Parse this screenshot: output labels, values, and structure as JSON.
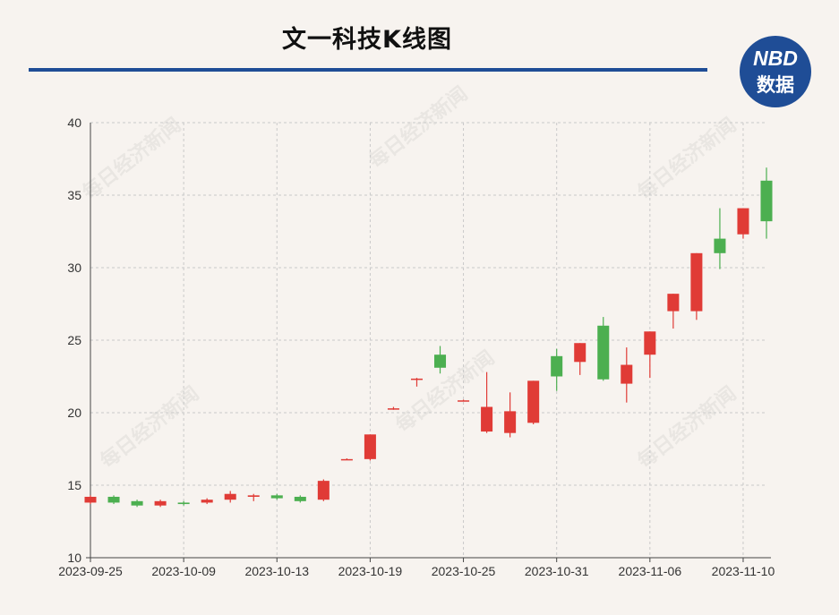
{
  "header": {
    "title": "文一科技K线图",
    "logo_line1": "NBD",
    "logo_line2": "数据",
    "watermark": "每日经济新闻"
  },
  "colors": {
    "up": "#e03b36",
    "down": "#4caf50",
    "brand": "#1f4d96",
    "grid": "#c9c9c9",
    "axis": "#444444"
  },
  "chart_data": {
    "type": "candlestick",
    "title": "文一科技K线图",
    "ylim": [
      10,
      40
    ],
    "yticks": [
      10,
      15,
      20,
      25,
      30,
      35,
      40
    ],
    "xtick_labels": [
      "2023-09-25",
      "2023-10-09",
      "2023-10-13",
      "2023-10-19",
      "2023-10-25",
      "2023-10-31",
      "2023-11-06",
      "2023-11-10"
    ],
    "grid": true,
    "up_color_meaning": "close >= open (red)",
    "candles": [
      {
        "date": "2023-09-25",
        "open": 13.8,
        "close": 14.2,
        "high": 14.3,
        "low": 13.7
      },
      {
        "date": "2023-09-26",
        "open": 14.2,
        "close": 13.8,
        "high": 14.3,
        "low": 13.7
      },
      {
        "date": "2023-09-27",
        "open": 13.9,
        "close": 13.6,
        "high": 14.0,
        "low": 13.5
      },
      {
        "date": "2023-09-28",
        "open": 13.6,
        "close": 13.9,
        "high": 14.0,
        "low": 13.5
      },
      {
        "date": "2023-10-09",
        "open": 13.8,
        "close": 13.7,
        "high": 13.9,
        "low": 13.6
      },
      {
        "date": "2023-10-10",
        "open": 13.8,
        "close": 14.0,
        "high": 14.1,
        "low": 13.7
      },
      {
        "date": "2023-10-11",
        "open": 14.0,
        "close": 14.4,
        "high": 14.6,
        "low": 13.8
      },
      {
        "date": "2023-10-12",
        "open": 14.2,
        "close": 14.3,
        "high": 14.4,
        "low": 13.9
      },
      {
        "date": "2023-10-13",
        "open": 14.3,
        "close": 14.1,
        "high": 14.4,
        "low": 14.0
      },
      {
        "date": "2023-10-16",
        "open": 14.2,
        "close": 13.9,
        "high": 14.3,
        "low": 13.8
      },
      {
        "date": "2023-10-17",
        "open": 14.0,
        "close": 15.3,
        "high": 15.4,
        "low": 13.9
      },
      {
        "date": "2023-10-18",
        "open": 16.8,
        "close": 16.8,
        "high": 16.85,
        "low": 16.75
      },
      {
        "date": "2023-10-19",
        "open": 16.8,
        "close": 18.5,
        "high": 18.5,
        "low": 16.7
      },
      {
        "date": "2023-10-20",
        "open": 20.3,
        "close": 20.3,
        "high": 20.4,
        "low": 20.2
      },
      {
        "date": "2023-10-23",
        "open": 22.35,
        "close": 22.35,
        "high": 22.4,
        "low": 21.8
      },
      {
        "date": "2023-10-24",
        "open": 24.0,
        "close": 23.1,
        "high": 24.6,
        "low": 22.7
      },
      {
        "date": "2023-10-25",
        "open": 20.85,
        "close": 20.85,
        "high": 20.9,
        "low": 20.8
      },
      {
        "date": "2023-10-26",
        "open": 18.7,
        "close": 20.4,
        "high": 22.8,
        "low": 18.6
      },
      {
        "date": "2023-10-27",
        "open": 18.6,
        "close": 20.1,
        "high": 21.4,
        "low": 18.3
      },
      {
        "date": "2023-10-30",
        "open": 19.3,
        "close": 22.2,
        "high": 22.2,
        "low": 19.2
      },
      {
        "date": "2023-10-31",
        "open": 23.9,
        "close": 22.5,
        "high": 24.4,
        "low": 21.5
      },
      {
        "date": "2023-11-01",
        "open": 23.5,
        "close": 24.8,
        "high": 24.8,
        "low": 22.6
      },
      {
        "date": "2023-11-02",
        "open": 26.0,
        "close": 22.3,
        "high": 26.6,
        "low": 22.2
      },
      {
        "date": "2023-11-03",
        "open": 22.0,
        "close": 23.3,
        "high": 24.5,
        "low": 20.7
      },
      {
        "date": "2023-11-06",
        "open": 24.0,
        "close": 25.6,
        "high": 25.6,
        "low": 22.4
      },
      {
        "date": "2023-11-07",
        "open": 27.0,
        "close": 28.2,
        "high": 28.2,
        "low": 25.8
      },
      {
        "date": "2023-11-08",
        "open": 27.0,
        "close": 31.0,
        "high": 31.0,
        "low": 26.4
      },
      {
        "date": "2023-11-09",
        "open": 32.0,
        "close": 31.0,
        "high": 34.1,
        "low": 29.9
      },
      {
        "date": "2023-11-10",
        "open": 32.3,
        "close": 34.1,
        "high": 34.1,
        "low": 32.0
      },
      {
        "date": "2023-11-13",
        "open": 36.0,
        "close": 33.2,
        "high": 36.9,
        "low": 32.0
      }
    ]
  }
}
